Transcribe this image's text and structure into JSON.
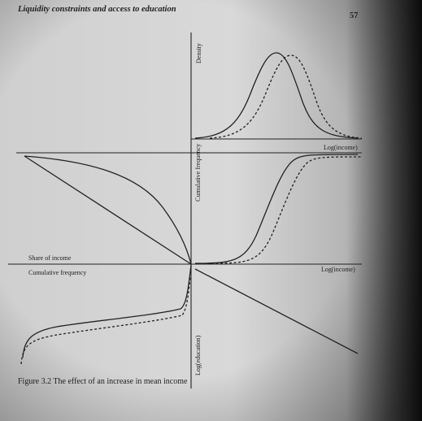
{
  "header": {
    "title": "Liquidity constraints and access to education",
    "page_number": "57"
  },
  "figure": {
    "top_right": {
      "y_label": "Density",
      "x_label": "Log(income)"
    },
    "middle_right": {
      "y_label": "Cumulative frequency"
    },
    "left": {
      "upper_label": "Share of income",
      "lower_label": "Cumulative frequency"
    },
    "middle_axis": {
      "x_label": "Log(income)"
    },
    "bottom": {
      "y_label": "Log(education)"
    },
    "caption": "Figure 3.2 The effect of an increase in mean income"
  }
}
